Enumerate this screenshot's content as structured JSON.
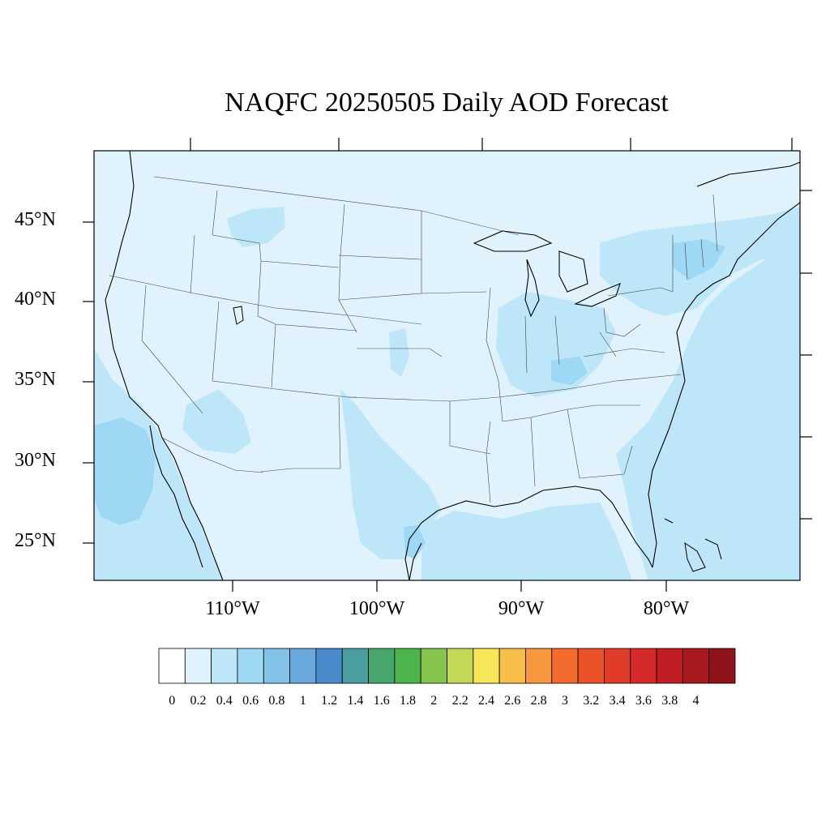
{
  "title": "NAQFC 20250505 Daily AOD Forecast",
  "map": {
    "projection": "lambert-conformal",
    "region": "CONUS",
    "lat_labels": [
      "45°N",
      "40°N",
      "35°N",
      "30°N",
      "25°N"
    ],
    "lon_labels": [
      "110°W",
      "100°W",
      "90°W",
      "80°W"
    ],
    "background_color": "#e0f3fc",
    "land_color": "#e0f3fc"
  },
  "colorbar": {
    "labels": [
      "0",
      "0.2",
      "0.4",
      "0.6",
      "0.8",
      "1",
      "1.2",
      "1.4",
      "1.6",
      "1.8",
      "2",
      "2.2",
      "2.4",
      "2.6",
      "2.8",
      "3",
      "3.2",
      "3.4",
      "3.6",
      "3.8",
      "4"
    ],
    "colors": [
      "#ffffff",
      "#e0f3fc",
      "#bde6f8",
      "#9fd8f4",
      "#84c3e8",
      "#6aa9de",
      "#4a8bcb",
      "#4a9ea0",
      "#47a56e",
      "#4cb44a",
      "#85c44d",
      "#c4d858",
      "#f7e65a",
      "#f7bf4a",
      "#f7973e",
      "#f26b2d",
      "#ea5229",
      "#e03c28",
      "#d42a2a",
      "#bf1c24",
      "#a8181f",
      "#8f1419"
    ]
  }
}
